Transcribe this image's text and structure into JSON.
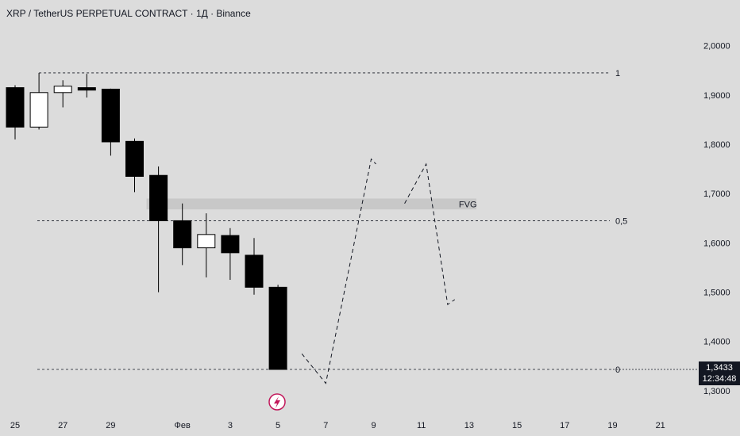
{
  "header": {
    "title": "XRP / TetherUS PERPETUAL CONTRACT · 1Д · Binance"
  },
  "last_price": {
    "value": "1,3433",
    "countdown": "12:34:48"
  },
  "colors": {
    "background": "#dcdcdc",
    "candle": "#000000",
    "up_candle_fill": "#ffffff",
    "fvg_zone": "#c8c8c8",
    "event_icon": "#c2185b"
  },
  "icons": {
    "event": "lightning-bolt-icon"
  },
  "chart_data": {
    "type": "candlestick",
    "title": "XRP / TetherUS PERPETUAL CONTRACT · 1Д · Binance",
    "ylim": [
      1.28,
      2.1
    ],
    "y_ticks": [
      1.3,
      1.4,
      1.5,
      1.6,
      1.7,
      1.8,
      1.9,
      2.0
    ],
    "y_tick_labels": [
      "1,3000",
      "1,4000",
      "1,5000",
      "1,6000",
      "1,7000",
      "1,8000",
      "1,9000",
      "2,0000"
    ],
    "x_ticks": [
      {
        "day": 0,
        "label": "25"
      },
      {
        "day": 2,
        "label": "27"
      },
      {
        "day": 4,
        "label": "29"
      },
      {
        "day": 7,
        "label": "Фев"
      },
      {
        "day": 9,
        "label": "3"
      },
      {
        "day": 11,
        "label": "5"
      },
      {
        "day": 13,
        "label": "7"
      },
      {
        "day": 15,
        "label": "9"
      },
      {
        "day": 17,
        "label": "11"
      },
      {
        "day": 19,
        "label": "13"
      },
      {
        "day": 21,
        "label": "15"
      },
      {
        "day": 23,
        "label": "17"
      },
      {
        "day": 25,
        "label": "19"
      },
      {
        "day": 27,
        "label": "21"
      }
    ],
    "candles": [
      {
        "day": 0,
        "open": 1.915,
        "high": 1.92,
        "low": 1.81,
        "close": 1.835
      },
      {
        "day": 1,
        "open": 1.835,
        "high": 1.945,
        "low": 1.83,
        "close": 1.905
      },
      {
        "day": 2,
        "open": 1.905,
        "high": 1.93,
        "low": 1.875,
        "close": 1.918
      },
      {
        "day": 3,
        "open": 1.915,
        "high": 1.943,
        "low": 1.895,
        "close": 1.91
      },
      {
        "day": 4,
        "open": 1.912,
        "high": 1.913,
        "low": 1.777,
        "close": 1.805
      },
      {
        "day": 5,
        "open": 1.806,
        "high": 1.812,
        "low": 1.703,
        "close": 1.735
      },
      {
        "day": 6,
        "open": 1.737,
        "high": 1.755,
        "low": 1.5,
        "close": 1.645
      },
      {
        "day": 7,
        "open": 1.645,
        "high": 1.68,
        "low": 1.555,
        "close": 1.59
      },
      {
        "day": 8,
        "open": 1.59,
        "high": 1.66,
        "low": 1.53,
        "close": 1.617
      },
      {
        "day": 9,
        "open": 1.615,
        "high": 1.63,
        "low": 1.525,
        "close": 1.58
      },
      {
        "day": 10,
        "open": 1.575,
        "high": 1.61,
        "low": 1.495,
        "close": 1.51
      },
      {
        "day": 11,
        "open": 1.51,
        "high": 1.515,
        "low": 1.3433,
        "close": 1.3433
      }
    ],
    "fib_levels": [
      {
        "label": "1",
        "price": 1.945
      },
      {
        "label": "0,5",
        "price": 1.645
      },
      {
        "label": "0",
        "price": 1.3433
      }
    ],
    "fvg_zone": {
      "label": "FVG",
      "top": 1.69,
      "bottom": 1.668,
      "start_day": 5.5,
      "end_day": 19.3
    },
    "projection_path": [
      {
        "day": 12.0,
        "price": 1.375
      },
      {
        "day": 13.0,
        "price": 1.315
      },
      {
        "day": 14.9,
        "price": 1.77
      },
      {
        "day": 15.1,
        "price": 1.76
      }
    ],
    "projection_path_2": [
      {
        "day": 16.3,
        "price": 1.68
      },
      {
        "day": 17.2,
        "price": 1.76
      },
      {
        "day": 18.1,
        "price": 1.475
      },
      {
        "day": 18.4,
        "price": 1.485
      }
    ],
    "last_price": 1.3433,
    "grid": false
  }
}
